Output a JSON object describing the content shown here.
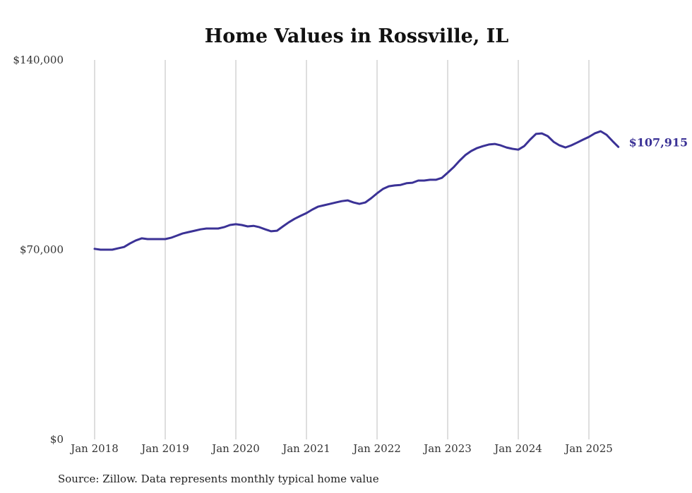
{
  "chart_data": {
    "type": "line",
    "title": "Home Values in Rossville, IL",
    "xlabel": "",
    "ylabel": "",
    "ylim": [
      0,
      140000
    ],
    "y_ticks": [
      {
        "value": 0,
        "label": "$0"
      },
      {
        "value": 70000,
        "label": "$70,000"
      },
      {
        "value": 140000,
        "label": "$140,000"
      }
    ],
    "x_ticks": [
      "Jan 2018",
      "Jan 2019",
      "Jan 2020",
      "Jan 2021",
      "Jan 2022",
      "Jan 2023",
      "Jan 2024",
      "Jan 2025"
    ],
    "grid": "vertical",
    "start_month": "Jan 2018",
    "end_month": "Jun 2025",
    "series": [
      {
        "name": "Typical home value",
        "color": "#3b3296",
        "values": [
          70300,
          70000,
          70000,
          70000,
          70500,
          71000,
          72300,
          73400,
          74200,
          73900,
          73900,
          73900,
          73900,
          74400,
          75200,
          76000,
          76500,
          77000,
          77500,
          77800,
          77800,
          77800,
          78300,
          79100,
          79400,
          79100,
          78600,
          78800,
          78300,
          77500,
          76800,
          77000,
          78600,
          80100,
          81400,
          82500,
          83500,
          84800,
          85900,
          86400,
          86900,
          87400,
          87900,
          88200,
          87400,
          86900,
          87400,
          89000,
          90800,
          92400,
          93400,
          93700,
          93900,
          94500,
          94700,
          95500,
          95500,
          95800,
          95800,
          96500,
          98400,
          100400,
          102800,
          104900,
          106400,
          107500,
          108200,
          108800,
          109000,
          108500,
          107700,
          107200,
          106900,
          108200,
          110600,
          112700,
          112900,
          111900,
          109800,
          108500,
          107700,
          108500,
          109500,
          110600,
          111600,
          112900,
          113700,
          112400,
          110100,
          107915
        ]
      }
    ],
    "end_label": "$107,915",
    "source": "Source: Zillow. Data represents monthly typical home value"
  }
}
